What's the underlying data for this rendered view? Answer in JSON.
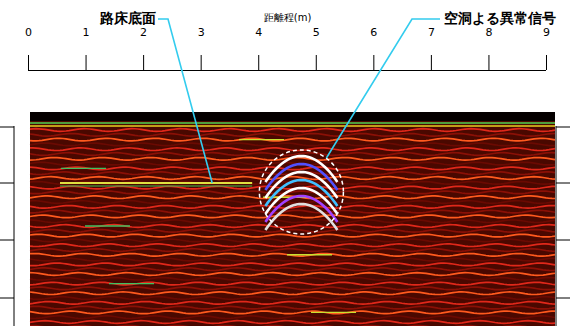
{
  "chart_data": {
    "type": "radargram",
    "x_label": "距離程(m)",
    "xlim": [
      0,
      9
    ],
    "xticks": [
      0,
      1,
      2,
      3,
      4,
      5,
      6,
      7,
      8,
      9
    ],
    "tick_labels": "x",
    "annotations": [
      {
        "text": "路床底面",
        "x": 3.2
      },
      {
        "text": "空洞よる異常信号",
        "x": 4.75
      }
    ]
  }
}
